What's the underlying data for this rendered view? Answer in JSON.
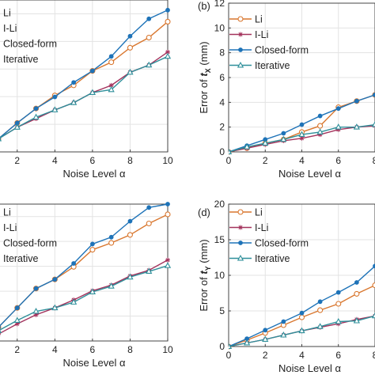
{
  "series_styles": [
    {
      "name": "Li",
      "color": "#d9772f",
      "marker": "circle-open"
    },
    {
      "name": "I-Li",
      "color": "#a3325c",
      "marker": "star"
    },
    {
      "name": "Closed-form",
      "color": "#1e73b8",
      "marker": "dot"
    },
    {
      "name": "Iterative",
      "color": "#2e8f9a",
      "marker": "triangle-open"
    }
  ],
  "chart_data": [
    {
      "type": "line",
      "panel_label": "",
      "title": "",
      "xlabel": "Noise Level α",
      "ylabel": "",
      "xlim": [
        1,
        10
      ],
      "ylim": [
        0,
        10.5
      ],
      "xticks": [
        2,
        4,
        6,
        8,
        10
      ],
      "yticks": [],
      "legend": "top-left",
      "grid": true,
      "x": [
        1,
        2,
        3,
        4,
        5,
        6,
        7,
        8,
        9,
        10
      ],
      "series": [
        {
          "name": "Li",
          "values": [
            0.9,
            2.0,
            3.0,
            3.9,
            4.6,
            5.6,
            6.2,
            7.2,
            7.9,
            9.0
          ]
        },
        {
          "name": "I-Li",
          "values": [
            0.9,
            1.7,
            2.3,
            2.9,
            3.4,
            4.1,
            4.6,
            5.5,
            6.0,
            6.9
          ]
        },
        {
          "name": "Closed-form",
          "values": [
            0.9,
            2.0,
            3.0,
            3.8,
            4.8,
            5.6,
            6.6,
            8.0,
            9.2,
            9.8
          ]
        },
        {
          "name": "Iterative",
          "values": [
            0.9,
            1.7,
            2.4,
            2.9,
            3.4,
            4.1,
            4.3,
            5.5,
            6.0,
            6.6
          ]
        }
      ]
    },
    {
      "type": "line",
      "panel_label": "(b)",
      "title": "",
      "xlabel": "Noise Level α",
      "ylabel": "Error of t_X (mm)",
      "ylabel_prefix": "Error of",
      "ylabel_symbol": "t",
      "ylabel_sub": "X",
      "ylabel_unit": "(mm)",
      "xlim": [
        0,
        8
      ],
      "ylim": [
        0,
        12
      ],
      "xticks": [
        0,
        2,
        4,
        6,
        8
      ],
      "yticks": [
        0,
        2,
        4,
        6,
        8,
        10,
        12
      ],
      "legend": "top-left",
      "grid": true,
      "x": [
        0,
        1,
        2,
        3,
        4,
        5,
        6,
        7,
        8
      ],
      "series": [
        {
          "name": "Li",
          "values": [
            0.0,
            0.3,
            0.7,
            1.0,
            1.6,
            2.1,
            3.6,
            4.1,
            4.6
          ]
        },
        {
          "name": "I-Li",
          "values": [
            0.0,
            0.3,
            0.6,
            0.9,
            1.1,
            1.4,
            1.8,
            2.0,
            2.1
          ]
        },
        {
          "name": "Closed-form",
          "values": [
            0.0,
            0.5,
            1.0,
            1.5,
            2.2,
            2.9,
            3.5,
            4.1,
            4.6
          ]
        },
        {
          "name": "Iterative",
          "values": [
            0.0,
            0.4,
            0.7,
            1.0,
            1.4,
            1.6,
            2.0,
            2.0,
            2.2
          ]
        }
      ]
    },
    {
      "type": "line",
      "panel_label": "",
      "title": "",
      "xlabel": "Noise Level α",
      "ylabel": "",
      "xlim": [
        1,
        10
      ],
      "ylim": [
        0,
        12
      ],
      "xticks": [
        2,
        4,
        6,
        8,
        10
      ],
      "yticks": [],
      "legend": "top-left",
      "grid": true,
      "x": [
        1,
        2,
        3,
        4,
        5,
        6,
        7,
        8,
        9,
        10
      ],
      "series": [
        {
          "name": "Li",
          "values": [
            1.2,
            2.9,
            4.6,
            5.4,
            6.5,
            8.0,
            8.6,
            9.3,
            10.3,
            11.1
          ]
        },
        {
          "name": "I-Li",
          "values": [
            0.6,
            1.5,
            2.3,
            2.9,
            3.6,
            4.4,
            4.9,
            5.7,
            6.2,
            7.1
          ]
        },
        {
          "name": "Closed-form",
          "values": [
            1.2,
            2.9,
            4.6,
            5.4,
            6.8,
            8.5,
            9.1,
            10.5,
            11.7,
            12.0
          ]
        },
        {
          "name": "Iterative",
          "values": [
            0.9,
            1.8,
            2.6,
            2.9,
            3.4,
            4.3,
            4.8,
            5.6,
            6.1,
            6.6
          ]
        }
      ]
    },
    {
      "type": "line",
      "panel_label": "(d)",
      "title": "",
      "xlabel": "Noise Level α",
      "ylabel": "Error of t_Y (mm)",
      "ylabel_prefix": "Error of",
      "ylabel_symbol": "t",
      "ylabel_sub": "Y",
      "ylabel_unit": "(mm)",
      "xlim": [
        0,
        8
      ],
      "ylim": [
        0,
        20
      ],
      "xticks": [
        0,
        2,
        4,
        6,
        8
      ],
      "yticks": [
        0,
        5,
        10,
        15,
        20
      ],
      "legend": "top-left",
      "grid": true,
      "x": [
        0,
        1,
        2,
        3,
        4,
        5,
        6,
        7,
        8
      ],
      "series": [
        {
          "name": "Li",
          "values": [
            0.0,
            0.9,
            1.9,
            3.0,
            4.1,
            5.1,
            6.0,
            7.4,
            8.6
          ]
        },
        {
          "name": "I-Li",
          "values": [
            0.0,
            0.5,
            1.0,
            1.6,
            2.2,
            2.7,
            3.2,
            3.8,
            4.3
          ]
        },
        {
          "name": "Closed-form",
          "values": [
            0.0,
            1.1,
            2.3,
            3.5,
            4.7,
            6.3,
            7.6,
            9.0,
            11.3
          ]
        },
        {
          "name": "Iterative",
          "values": [
            0.0,
            0.5,
            1.0,
            1.6,
            2.2,
            2.8,
            3.5,
            3.6,
            4.3
          ]
        }
      ]
    }
  ]
}
